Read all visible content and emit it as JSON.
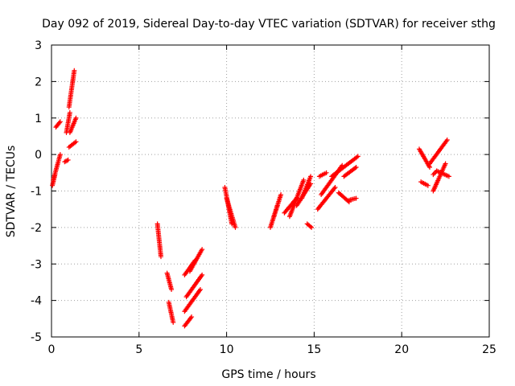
{
  "chart_data": {
    "type": "scatter",
    "title": "Day 092 of 2019, Sidereal Day-to-day VTEC variation (SDTVAR) for receiver sthg",
    "xlabel": "GPS time / hours",
    "ylabel": "SDTVAR / TECUs",
    "xlim": [
      0,
      25
    ],
    "ylim": [
      -5,
      3
    ],
    "xticks": [
      "0",
      "5",
      "10",
      "15",
      "20",
      "25"
    ],
    "yticks": [
      "-5",
      "-4",
      "-3",
      "-2",
      "-1",
      "0",
      "1",
      "2",
      "3"
    ],
    "grid": true,
    "marker": "plus",
    "color": "#ff0000",
    "segments": [
      {
        "x0": 0.05,
        "x1": 0.2,
        "y0": -0.85,
        "y1": -0.55
      },
      {
        "x0": 0.1,
        "x1": 0.5,
        "y0": -0.7,
        "y1": 0.0
      },
      {
        "x0": 0.25,
        "x1": 0.5,
        "y0": 0.75,
        "y1": 0.9
      },
      {
        "x0": 0.85,
        "x1": 1.05,
        "y0": 0.6,
        "y1": 1.15
      },
      {
        "x0": 1.0,
        "x1": 1.3,
        "y0": 1.3,
        "y1": 2.3
      },
      {
        "x0": 1.05,
        "x1": 1.4,
        "y0": 0.6,
        "y1": 1.0
      },
      {
        "x0": 1.0,
        "x1": 1.4,
        "y0": 0.2,
        "y1": 0.35
      },
      {
        "x0": 0.75,
        "x1": 0.95,
        "y0": -0.2,
        "y1": -0.15
      },
      {
        "x0": 6.05,
        "x1": 6.25,
        "y0": -1.9,
        "y1": -2.8
      },
      {
        "x0": 6.6,
        "x1": 6.85,
        "y0": -3.25,
        "y1": -3.7
      },
      {
        "x0": 6.7,
        "x1": 6.95,
        "y0": -4.05,
        "y1": -4.6
      },
      {
        "x0": 7.6,
        "x1": 8.0,
        "y0": -4.7,
        "y1": -4.45
      },
      {
        "x0": 7.6,
        "x1": 8.5,
        "y0": -4.3,
        "y1": -3.7
      },
      {
        "x0": 7.7,
        "x1": 8.6,
        "y0": -3.9,
        "y1": -3.3
      },
      {
        "x0": 7.6,
        "x1": 8.2,
        "y0": -3.3,
        "y1": -2.9
      },
      {
        "x0": 7.9,
        "x1": 8.6,
        "y0": -3.2,
        "y1": -2.6
      },
      {
        "x0": 9.9,
        "x1": 10.3,
        "y0": -0.9,
        "y1": -1.9
      },
      {
        "x0": 10.0,
        "x1": 10.5,
        "y0": -1.2,
        "y1": -2.0
      },
      {
        "x0": 12.5,
        "x1": 12.9,
        "y0": -2.0,
        "y1": -1.4
      },
      {
        "x0": 12.7,
        "x1": 13.1,
        "y0": -1.7,
        "y1": -1.1
      },
      {
        "x0": 13.3,
        "x1": 14.0,
        "y0": -1.6,
        "y1": -1.2
      },
      {
        "x0": 13.6,
        "x1": 14.4,
        "y0": -1.7,
        "y1": -0.7
      },
      {
        "x0": 14.0,
        "x1": 14.8,
        "y0": -1.4,
        "y1": -0.8
      },
      {
        "x0": 14.3,
        "x1": 14.8,
        "y0": -1.2,
        "y1": -0.6
      },
      {
        "x0": 14.6,
        "x1": 14.85,
        "y0": -1.9,
        "y1": -2.0
      },
      {
        "x0": 15.2,
        "x1": 16.2,
        "y0": -1.5,
        "y1": -0.9
      },
      {
        "x0": 15.4,
        "x1": 16.6,
        "y0": -1.1,
        "y1": -0.3
      },
      {
        "x0": 16.0,
        "x1": 17.5,
        "y0": -0.6,
        "y1": -0.05
      },
      {
        "x0": 15.3,
        "x1": 15.7,
        "y0": -0.6,
        "y1": -0.5
      },
      {
        "x0": 16.4,
        "x1": 17.0,
        "y0": -1.05,
        "y1": -1.3
      },
      {
        "x0": 17.0,
        "x1": 17.4,
        "y0": -1.25,
        "y1": -1.2
      },
      {
        "x0": 16.7,
        "x1": 17.4,
        "y0": -0.6,
        "y1": -0.35
      },
      {
        "x0": 21.0,
        "x1": 21.6,
        "y0": 0.15,
        "y1": -0.35
      },
      {
        "x0": 21.6,
        "x1": 22.6,
        "y0": -0.25,
        "y1": 0.4
      },
      {
        "x0": 21.1,
        "x1": 21.5,
        "y0": -0.75,
        "y1": -0.85
      },
      {
        "x0": 21.8,
        "x1": 22.5,
        "y0": -1.0,
        "y1": -0.25
      },
      {
        "x0": 22.0,
        "x1": 22.7,
        "y0": -0.45,
        "y1": -0.6
      },
      {
        "x0": 21.8,
        "x1": 22.0,
        "y0": -0.55,
        "y1": -0.45
      }
    ]
  }
}
